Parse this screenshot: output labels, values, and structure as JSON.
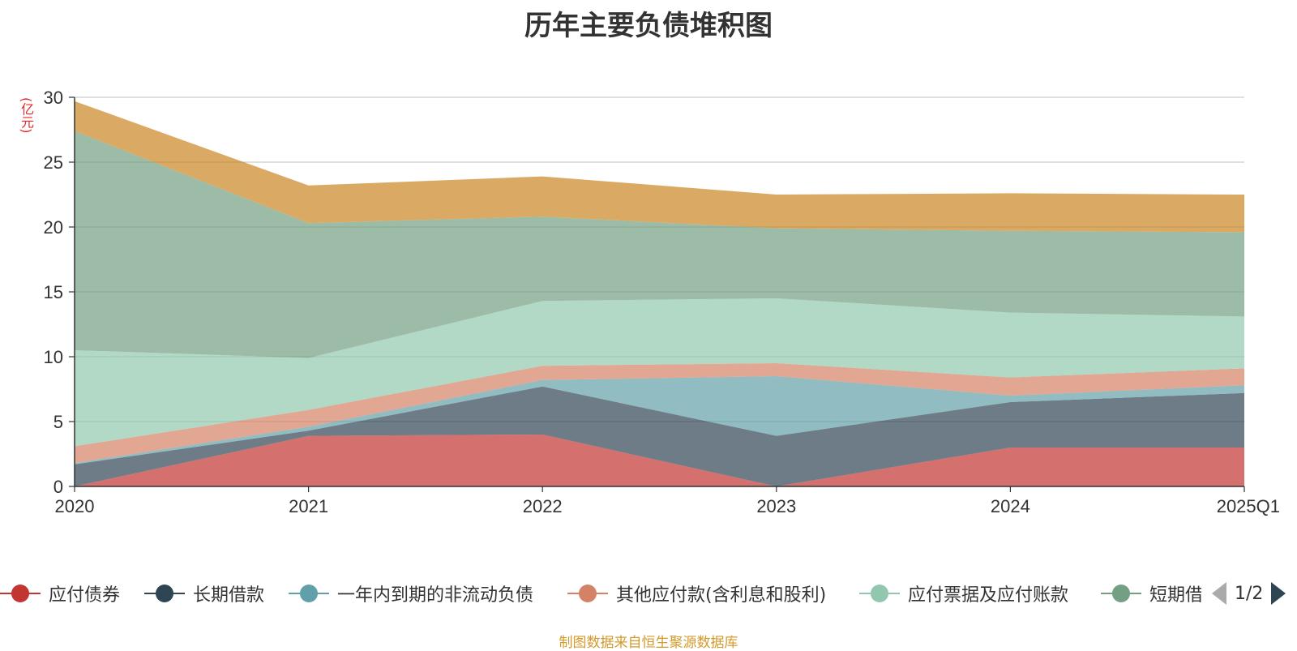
{
  "title": "历年主要负债堆积图",
  "unit_label": "(亿元)",
  "footer": "制图数据来自恒生聚源数据库",
  "legend_page": "1/2",
  "legend_icons": [
    "legend-prev-icon",
    "legend-next-icon"
  ],
  "chart_data": {
    "type": "area",
    "stacked": true,
    "categories": [
      "2020",
      "2021",
      "2022",
      "2023",
      "2024",
      "2025Q1"
    ],
    "ylim": [
      0,
      30
    ],
    "yticks": [
      0,
      5,
      10,
      15,
      20,
      25,
      30
    ],
    "grid": true,
    "legend_position": "bottom",
    "series": [
      {
        "name": "应付债券",
        "color": "#c23531",
        "values": [
          0.0,
          3.9,
          4.0,
          0.0,
          3.0,
          3.0
        ]
      },
      {
        "name": "长期借款",
        "color": "#2f4554",
        "values": [
          1.7,
          0.4,
          3.7,
          3.9,
          3.5,
          4.2
        ]
      },
      {
        "name": "一年内到期的非流动负债",
        "color": "#61a0a8",
        "values": [
          0.1,
          0.3,
          0.5,
          4.6,
          0.5,
          0.6
        ]
      },
      {
        "name": "其他应付款(含利息和股利)",
        "color": "#d48265",
        "values": [
          1.3,
          1.3,
          1.1,
          1.0,
          1.4,
          1.3
        ]
      },
      {
        "name": "应付票据及应付账款",
        "color": "#91c7ae",
        "values": [
          7.4,
          4.0,
          5.0,
          5.0,
          5.0,
          4.0
        ]
      },
      {
        "name": "短期借款",
        "color": "#749f83",
        "values": [
          16.9,
          10.4,
          6.5,
          5.4,
          6.3,
          6.5
        ]
      },
      {
        "name": "",
        "color": "#ca8622",
        "values": [
          2.3,
          2.9,
          3.1,
          2.6,
          2.9,
          2.9
        ]
      }
    ]
  }
}
